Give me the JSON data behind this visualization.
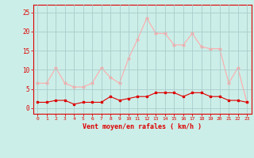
{
  "x": [
    0,
    1,
    2,
    3,
    4,
    5,
    6,
    7,
    8,
    9,
    10,
    11,
    12,
    13,
    14,
    15,
    16,
    17,
    18,
    19,
    20,
    21,
    22,
    23
  ],
  "wind_avg": [
    1.5,
    1.5,
    2.0,
    2.0,
    1.0,
    1.5,
    1.5,
    1.5,
    3.0,
    2.0,
    2.5,
    3.0,
    3.0,
    4.0,
    4.0,
    4.0,
    3.0,
    4.0,
    4.0,
    3.0,
    3.0,
    2.0,
    2.0,
    1.5
  ],
  "wind_gust": [
    6.5,
    6.5,
    10.5,
    6.5,
    5.5,
    5.5,
    6.5,
    10.5,
    8.0,
    6.5,
    13.0,
    18.0,
    23.5,
    19.5,
    19.5,
    16.5,
    16.5,
    19.5,
    16.0,
    15.5,
    15.5,
    6.5,
    10.5,
    1.5
  ],
  "color_avg": "#dd0000",
  "color_gust": "#ffaaaa",
  "bg_color": "#cceee8",
  "grid_color": "#aacccc",
  "xlabel": "Vent moyen/en rafales ( km/h )",
  "ylabel_ticks": [
    0,
    5,
    10,
    15,
    20,
    25
  ],
  "ylim": [
    -1.5,
    27
  ],
  "xlim": [
    -0.5,
    23.5
  ]
}
